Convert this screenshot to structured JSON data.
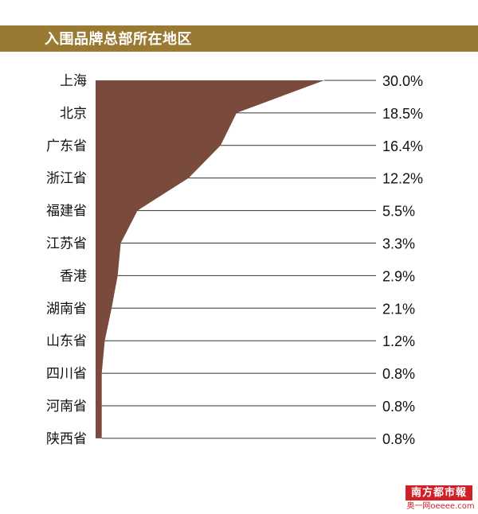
{
  "title": "入围品牌总部所在地区",
  "colors": {
    "title_bar": "#9a7a32",
    "area": "#7a4a3c",
    "grid": "#333333",
    "watermark": "#d01f26"
  },
  "chart_data": {
    "type": "area",
    "orientation": "horizontal",
    "categories": [
      "上海",
      "北京",
      "广东省",
      "浙江省",
      "福建省",
      "江苏省",
      "香港",
      "湖南省",
      "山东省",
      "四川省",
      "河南省",
      "陕西省"
    ],
    "values": [
      30.0,
      18.5,
      16.4,
      12.2,
      5.5,
      3.3,
      2.9,
      2.1,
      1.2,
      0.8,
      0.8,
      0.8
    ],
    "value_labels": [
      "30.0%",
      "18.5%",
      "16.4%",
      "12.2%",
      "5.5%",
      "3.3%",
      "2.9%",
      "2.1%",
      "1.2%",
      "0.8%",
      "0.8%",
      "0.8%"
    ],
    "title": "入围品牌总部所在地区",
    "xlabel": "",
    "ylabel": "",
    "grid": true,
    "legend": "none"
  },
  "watermark": {
    "badge": "南方都市報",
    "sub": "奥一网oeeee.com"
  }
}
